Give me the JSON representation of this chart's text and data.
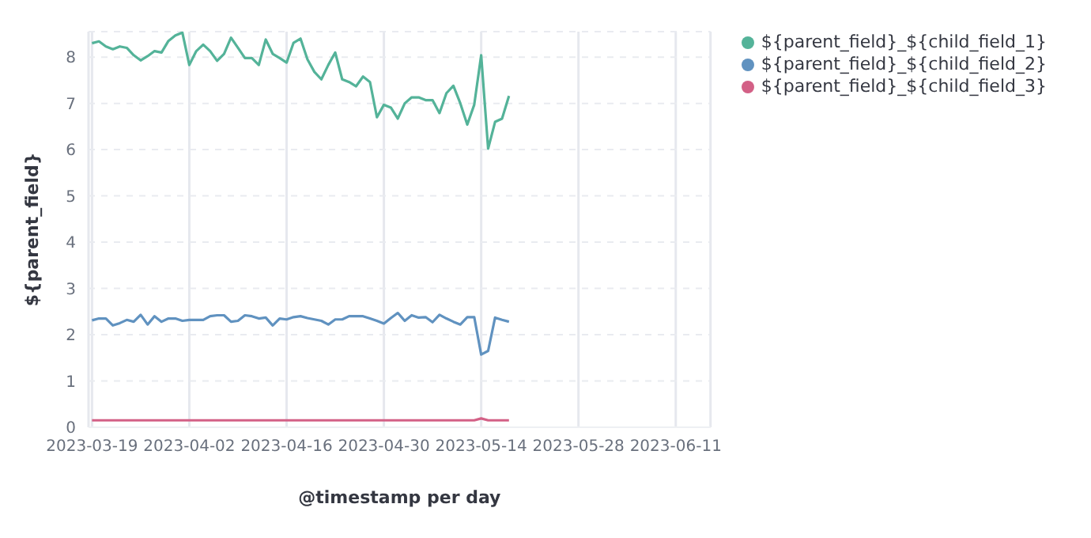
{
  "chart_data": {
    "type": "line",
    "xlabel": "@timestamp per day",
    "ylabel": "${parent_field}",
    "x": [
      "2023-03-19",
      "2023-03-20",
      "2023-03-21",
      "2023-03-22",
      "2023-03-23",
      "2023-03-24",
      "2023-03-25",
      "2023-03-26",
      "2023-03-27",
      "2023-03-28",
      "2023-03-29",
      "2023-03-30",
      "2023-03-31",
      "2023-04-01",
      "2023-04-02",
      "2023-04-03",
      "2023-04-04",
      "2023-04-05",
      "2023-04-06",
      "2023-04-07",
      "2023-04-08",
      "2023-04-09",
      "2023-04-10",
      "2023-04-11",
      "2023-04-12",
      "2023-04-13",
      "2023-04-14",
      "2023-04-15",
      "2023-04-16",
      "2023-04-17",
      "2023-04-18",
      "2023-04-19",
      "2023-04-20",
      "2023-04-21",
      "2023-04-22",
      "2023-04-23",
      "2023-04-24",
      "2023-04-25",
      "2023-04-26",
      "2023-04-27",
      "2023-04-28",
      "2023-04-29",
      "2023-04-30",
      "2023-05-01",
      "2023-05-02",
      "2023-05-03",
      "2023-05-04",
      "2023-05-05",
      "2023-05-06",
      "2023-05-07",
      "2023-05-08",
      "2023-05-09",
      "2023-05-10",
      "2023-05-11",
      "2023-05-12",
      "2023-05-13",
      "2023-05-14",
      "2023-05-15",
      "2023-05-16",
      "2023-05-17",
      "2023-05-18"
    ],
    "series": [
      {
        "name": "${parent_field}_${child_field_1}",
        "color": "#54b399",
        "values": [
          8.3,
          8.34,
          8.23,
          8.17,
          8.23,
          8.2,
          8.04,
          7.93,
          8.02,
          8.13,
          8.1,
          8.35,
          8.47,
          8.53,
          7.83,
          8.13,
          8.27,
          8.13,
          7.92,
          8.07,
          8.42,
          8.2,
          7.98,
          7.98,
          7.83,
          8.38,
          8.07,
          7.98,
          7.88,
          8.31,
          8.4,
          7.95,
          7.68,
          7.52,
          7.83,
          8.1,
          7.52,
          7.46,
          7.37,
          7.58,
          7.46,
          6.7,
          6.97,
          6.91,
          6.67,
          7.0,
          7.13,
          7.13,
          7.07,
          7.07,
          6.79,
          7.22,
          7.38,
          7.0,
          6.54,
          6.97,
          8.04,
          6.02,
          6.6,
          6.67,
          7.16
        ]
      },
      {
        "name": "${parent_field}_${child_field_2}",
        "color": "#6092c0",
        "values": [
          2.31,
          2.35,
          2.35,
          2.2,
          2.25,
          2.32,
          2.28,
          2.43,
          2.22,
          2.4,
          2.28,
          2.35,
          2.35,
          2.3,
          2.32,
          2.32,
          2.32,
          2.4,
          2.42,
          2.42,
          2.28,
          2.3,
          2.42,
          2.4,
          2.35,
          2.37,
          2.2,
          2.35,
          2.33,
          2.38,
          2.4,
          2.36,
          2.33,
          2.3,
          2.22,
          2.33,
          2.33,
          2.4,
          2.4,
          2.4,
          2.35,
          2.3,
          2.24,
          2.36,
          2.47,
          2.3,
          2.42,
          2.37,
          2.38,
          2.27,
          2.43,
          2.35,
          2.28,
          2.22,
          2.38,
          2.38,
          1.57,
          1.65,
          2.37,
          2.32,
          2.28
        ]
      },
      {
        "name": "${parent_field}_${child_field_3}",
        "color": "#d36086",
        "values": [
          0.15,
          0.15,
          0.15,
          0.15,
          0.15,
          0.15,
          0.15,
          0.15,
          0.15,
          0.15,
          0.15,
          0.15,
          0.15,
          0.15,
          0.15,
          0.15,
          0.15,
          0.15,
          0.15,
          0.15,
          0.15,
          0.15,
          0.15,
          0.15,
          0.15,
          0.15,
          0.15,
          0.15,
          0.15,
          0.15,
          0.15,
          0.15,
          0.15,
          0.15,
          0.15,
          0.15,
          0.15,
          0.15,
          0.15,
          0.15,
          0.15,
          0.15,
          0.15,
          0.15,
          0.15,
          0.15,
          0.15,
          0.15,
          0.15,
          0.15,
          0.15,
          0.15,
          0.15,
          0.15,
          0.15,
          0.15,
          0.19,
          0.15,
          0.15,
          0.15,
          0.15
        ]
      }
    ],
    "xlim": [
      "2023-03-18T12:00",
      "2023-06-16"
    ],
    "xticks": [
      "2023-03-19",
      "2023-04-02",
      "2023-04-16",
      "2023-04-30",
      "2023-05-14",
      "2023-05-28",
      "2023-06-11"
    ],
    "ylim": [
      0,
      8.55
    ],
    "yticks": [
      0,
      1,
      2,
      3,
      4,
      5,
      6,
      7,
      8
    ],
    "grid": true,
    "legend": "top right",
    "marker": "none",
    "line_style": "solid"
  }
}
